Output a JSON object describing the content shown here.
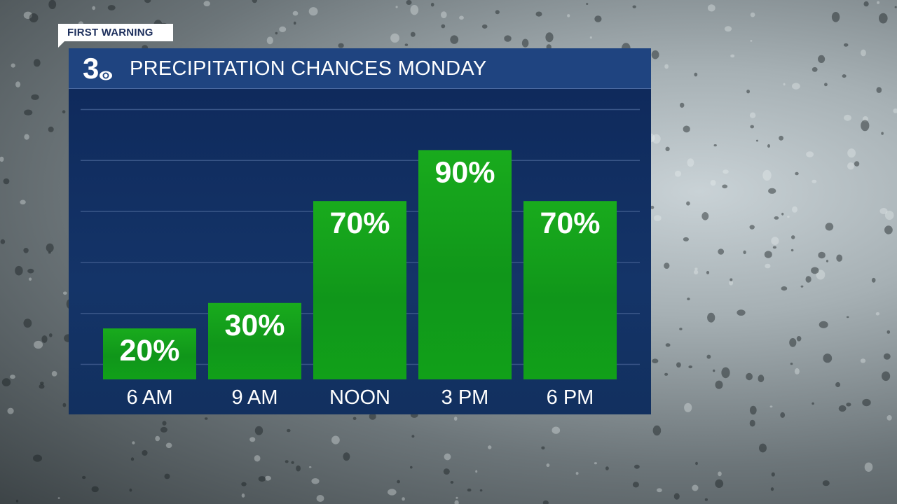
{
  "badge": {
    "label": "FIRST WARNING"
  },
  "header": {
    "title": "PRECIPITATION CHANCES MONDAY"
  },
  "logo": {
    "name": "channel-3-cbs-logo",
    "text": "3"
  },
  "colors": {
    "panel": "#102a5b",
    "title_bar": "#1f4480",
    "bar": "#17a51b",
    "bar_dark": "#0b8f10",
    "text": "#ffffff",
    "gridline": "#3a5688"
  },
  "chart_data": {
    "type": "bar",
    "title": "PRECIPITATION CHANCES MONDAY",
    "categories": [
      "6 AM",
      "9 AM",
      "NOON",
      "3 PM",
      "6 PM"
    ],
    "values": [
      20,
      30,
      70,
      90,
      70
    ],
    "value_labels": [
      "20%",
      "30%",
      "70%",
      "90%",
      "70%"
    ],
    "unit": "%",
    "ylim": [
      0,
      100
    ],
    "grid": true,
    "xlabel": "",
    "ylabel": ""
  }
}
